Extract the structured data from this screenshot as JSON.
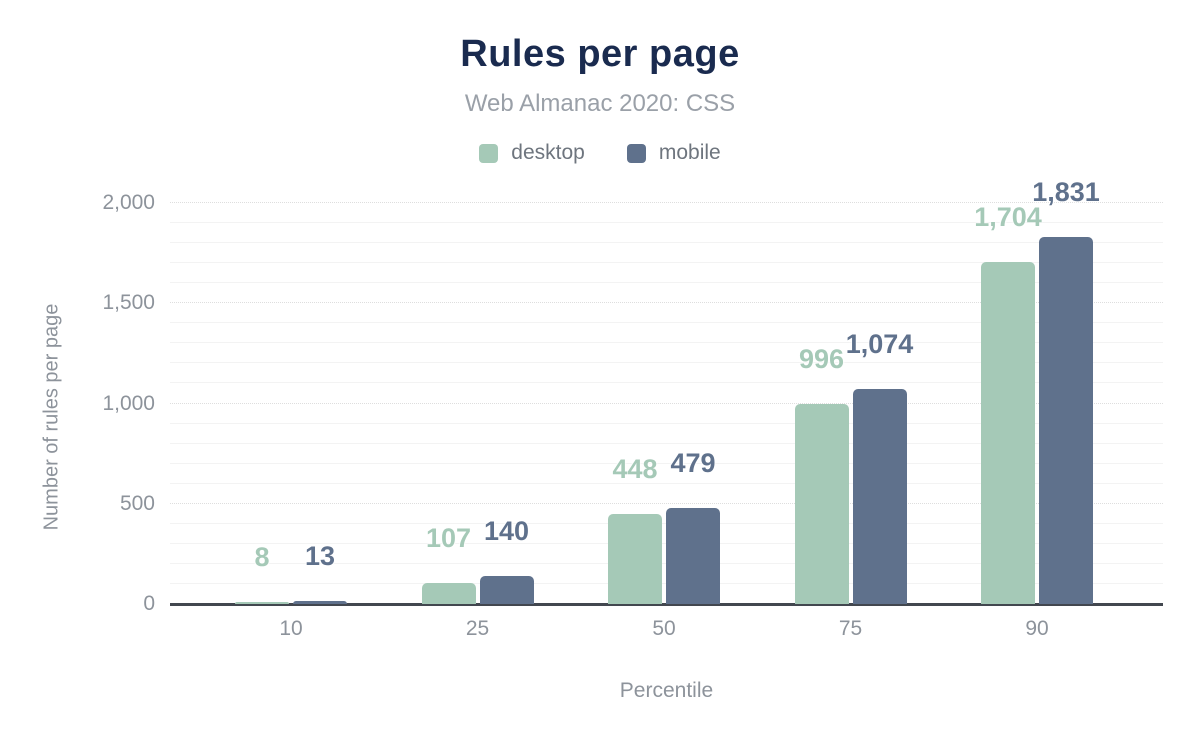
{
  "chart_data": {
    "type": "bar",
    "title": "Rules per page",
    "subtitle": "Web Almanac 2020: CSS",
    "xlabel": "Percentile",
    "ylabel": "Number of rules per page",
    "categories": [
      "10",
      "25",
      "50",
      "75",
      "90"
    ],
    "series": [
      {
        "name": "desktop",
        "color": "#a5c9b7",
        "values": [
          8,
          107,
          448,
          996,
          1704
        ],
        "value_labels": [
          "8",
          "107",
          "448",
          "996",
          "1,704"
        ]
      },
      {
        "name": "mobile",
        "color": "#5f718c",
        "values": [
          13,
          140,
          479,
          1074,
          1831
        ],
        "value_labels": [
          "13",
          "140",
          "479",
          "1,074",
          "1,831"
        ]
      }
    ],
    "ylim": [
      0,
      2000
    ],
    "yticks": [
      0,
      500,
      1000,
      1500,
      2000
    ],
    "ytick_labels": [
      "0",
      "500",
      "1,000",
      "1,500",
      "2,000"
    ],
    "minor_grid_step": 100,
    "grid": true,
    "legend_position": "top"
  },
  "colors": {
    "title": "#1a2b4f",
    "subtitle": "#9aa0a8",
    "axis_text": "#8d939b",
    "legend_text": "#6e757e",
    "axis_line": "#42474f",
    "major_grid": "#dedede",
    "minor_grid": "#f3f3f3",
    "background": "#ffffff"
  }
}
